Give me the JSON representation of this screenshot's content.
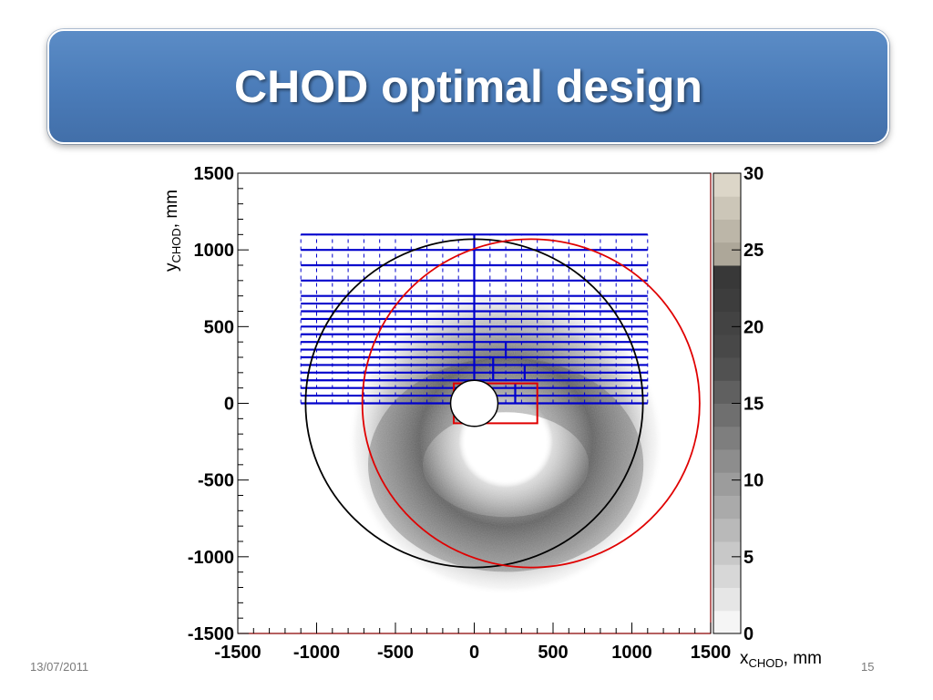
{
  "slide": {
    "title": "CHOD optimal design",
    "date": "13/07/2011",
    "page_number": "15"
  },
  "colors": {
    "title_banner": "#4a7bb8",
    "hodoscope_lines": "#0000cc",
    "circle_a": "#000000",
    "circle_b": "#e00000",
    "beam_box": "#e00000"
  },
  "chart_data": {
    "type": "heatmap",
    "xlabel": "x",
    "xlabel_sub": "CHOD",
    "xlabel_unit": ", mm",
    "ylabel": "y",
    "ylabel_sub": "CHOD",
    "ylabel_unit": ", mm",
    "xlim": [
      -1500,
      1500
    ],
    "ylim": [
      -1500,
      1500
    ],
    "x_ticks": [
      "-1500",
      "-1000",
      "-500",
      "0",
      "500",
      "1000",
      "1500"
    ],
    "y_ticks": [
      "1500",
      "1000",
      "500",
      "0",
      "-500",
      "-1000",
      "-1500"
    ],
    "colorbar": {
      "range": [
        0,
        30
      ],
      "ticks": [
        "30",
        "25",
        "20",
        "15",
        "10",
        "5",
        "0"
      ],
      "palette": "grayscale"
    },
    "heatmap_description": "Hit density forms an annulus centered near (200, -200) with inner radius ~250 and outer radius ~1000; densest at y < 0",
    "hodoscope": {
      "x_range": [
        -1100,
        1100
      ],
      "y_range": [
        0,
        1100
      ],
      "horizontal_slab_edges_y": [
        0,
        50,
        100,
        150,
        200,
        250,
        300,
        350,
        400,
        450,
        500,
        550,
        600,
        650,
        700,
        800,
        900,
        1000,
        1100
      ],
      "vertical_segment_x_spacing": 100,
      "central_column_x": 0
    },
    "circles": [
      {
        "name": "black",
        "center": [
          0,
          0
        ],
        "radius": 1070
      },
      {
        "name": "red",
        "center": [
          360,
          0
        ],
        "radius": 1070
      }
    ],
    "beam_hole": {
      "center": [
        0,
        0
      ],
      "radius": 150
    },
    "beam_box": {
      "x": [
        -130,
        400
      ],
      "y": [
        -130,
        130
      ]
    }
  }
}
